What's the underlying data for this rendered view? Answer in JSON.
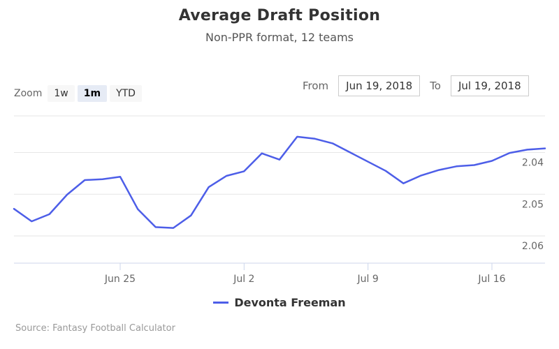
{
  "chart_data": {
    "type": "line",
    "title": "Average Draft Position",
    "subtitle": "Non-PPR format, 12 teams",
    "x": [
      "2018-06-19",
      "2018-06-20",
      "2018-06-21",
      "2018-06-22",
      "2018-06-23",
      "2018-06-24",
      "2018-06-25",
      "2018-06-26",
      "2018-06-27",
      "2018-06-28",
      "2018-06-29",
      "2018-06-30",
      "2018-07-01",
      "2018-07-02",
      "2018-07-03",
      "2018-07-04",
      "2018-07-05",
      "2018-07-06",
      "2018-07-07",
      "2018-07-08",
      "2018-07-09",
      "2018-07-10",
      "2018-07-11",
      "2018-07-12",
      "2018-07-13",
      "2018-07-14",
      "2018-07-15",
      "2018-07-16",
      "2018-07-17",
      "2018-07-18",
      "2018-07-19"
    ],
    "series": [
      {
        "name": "Devonta Freeman",
        "color": "#4d5ee8",
        "values": [
          2.0535,
          2.0565,
          2.0548,
          2.0501,
          2.0466,
          2.0464,
          2.0458,
          2.0536,
          2.0579,
          2.0581,
          2.0551,
          2.0483,
          2.0456,
          2.0445,
          2.0402,
          2.0417,
          2.0362,
          2.0367,
          2.0378,
          2.04,
          2.0422,
          2.0444,
          2.0474,
          2.0455,
          2.0442,
          2.0433,
          2.043,
          2.042,
          2.0401,
          2.0393,
          2.039
        ]
      }
    ],
    "y_ticks": [
      "2.04",
      "2.05",
      "2.06"
    ],
    "x_ticks": [
      "Jun 25",
      "Jul 2",
      "Jul 9",
      "Jul 16"
    ],
    "ylim": [
      2.0662,
      2.0312
    ],
    "y_reversed": true,
    "grid": true,
    "legend_position": "bottom-center"
  },
  "zoom": {
    "label": "Zoom",
    "buttons": [
      {
        "label": "1w",
        "active": false
      },
      {
        "label": "1m",
        "active": true
      },
      {
        "label": "YTD",
        "active": false
      }
    ]
  },
  "range": {
    "from_label": "From",
    "from_value": "Jun 19, 2018",
    "to_label": "To",
    "to_value": "Jul 19, 2018"
  },
  "source": "Source: Fantasy Football Calculator"
}
